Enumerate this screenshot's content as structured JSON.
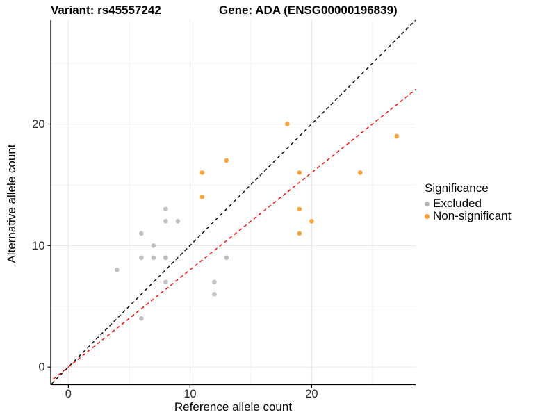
{
  "header": {
    "variant_title": "Variant: rs45557242",
    "gene_title": "Gene: ADA (ENSG00000196839)"
  },
  "legend": {
    "title": "Significance",
    "items": [
      {
        "label": "Excluded",
        "color": "#B5B5B5"
      },
      {
        "label": "Non-significant",
        "color": "#F9A43B"
      }
    ]
  },
  "chart_data": {
    "type": "scatter",
    "title": "Variant: rs45557242 / Gene: ADA (ENSG00000196839)",
    "xlabel": "Reference allele count",
    "ylabel": "Alternative allele count",
    "xlim": [
      -1.45,
      28.55
    ],
    "ylim": [
      -1.45,
      28.55
    ],
    "x_ticks": [
      0,
      10,
      20
    ],
    "y_ticks": [
      0,
      10,
      20
    ],
    "x_minor": [
      5,
      15,
      25
    ],
    "y_minor": [
      5,
      15,
      25
    ],
    "grid": true,
    "legend_position": "right",
    "series": [
      {
        "name": "Excluded",
        "color": "#B5B5B5",
        "opacity": 0.85,
        "points": [
          {
            "x": 4,
            "y": 8
          },
          {
            "x": 6,
            "y": 4
          },
          {
            "x": 6,
            "y": 9
          },
          {
            "x": 6,
            "y": 11
          },
          {
            "x": 7,
            "y": 9
          },
          {
            "x": 7,
            "y": 10
          },
          {
            "x": 8,
            "y": 7
          },
          {
            "x": 8,
            "y": 9
          },
          {
            "x": 8,
            "y": 9
          },
          {
            "x": 8,
            "y": 12
          },
          {
            "x": 8,
            "y": 13
          },
          {
            "x": 9,
            "y": 12
          },
          {
            "x": 12,
            "y": 6
          },
          {
            "x": 12,
            "y": 7
          },
          {
            "x": 13,
            "y": 9
          }
        ]
      },
      {
        "name": "Non-significant",
        "color": "#F9A43B",
        "opacity": 1,
        "points": [
          {
            "x": 11,
            "y": 14
          },
          {
            "x": 11,
            "y": 16
          },
          {
            "x": 13,
            "y": 17
          },
          {
            "x": 18,
            "y": 20
          },
          {
            "x": 19,
            "y": 11
          },
          {
            "x": 19,
            "y": 13
          },
          {
            "x": 19,
            "y": 16
          },
          {
            "x": 20,
            "y": 12
          },
          {
            "x": 24,
            "y": 16
          },
          {
            "x": 27,
            "y": 19
          }
        ]
      }
    ],
    "reference_lines": [
      {
        "name": "identity-line",
        "slope": 1,
        "intercept": 0,
        "color": "#000000",
        "dash": "5,4"
      },
      {
        "name": "expected-ratio-line",
        "slope": 0.8,
        "intercept": 0,
        "color": "#FF0000",
        "dash": "5,4"
      }
    ],
    "style": {
      "grid_major_color": "#E6E6E6",
      "grid_minor_color": "#F2F2F2",
      "axis_line_color": "#000000",
      "tick_label_color": "#2B2B2B"
    }
  }
}
